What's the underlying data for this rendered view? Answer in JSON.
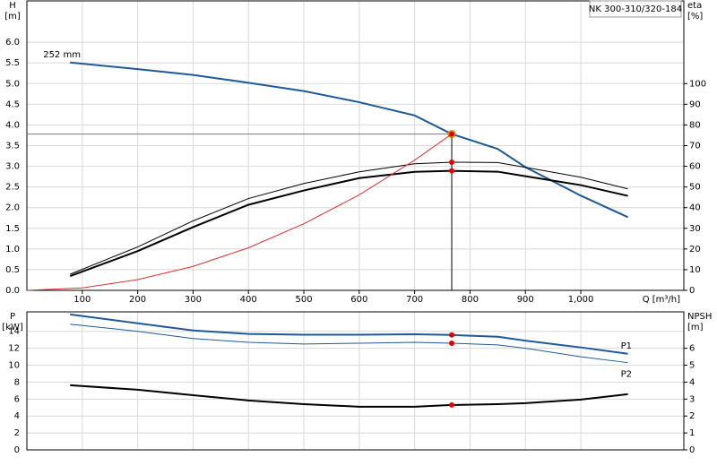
{
  "chart_data": [
    {
      "type": "line",
      "title": "NK 300-310/320-184",
      "xlabel": "Q [m³/h]",
      "ylabel": "H",
      "yunit": "[m]",
      "y2label": "eta",
      "y2unit": "[%]",
      "xlim": [
        0,
        1186
      ],
      "xticks": [
        100,
        200,
        300,
        400,
        500,
        600,
        700,
        800,
        900,
        {
          "value": 1000,
          "label": "1,000"
        }
      ],
      "ylim": [
        0,
        7
      ],
      "yticks": [
        {
          "value": 0,
          "label": "0.0"
        },
        {
          "value": 0.5,
          "label": "0.5"
        },
        {
          "value": 1,
          "label": "1.0"
        },
        {
          "value": 1.5,
          "label": "1.5"
        },
        {
          "value": 2,
          "label": "2.0"
        },
        {
          "value": 2.5,
          "label": "2.5"
        },
        {
          "value": 3,
          "label": "3.0"
        },
        {
          "value": 3.5,
          "label": "3.5"
        },
        {
          "value": 4,
          "label": "4.0"
        },
        {
          "value": 4.5,
          "label": "4.5"
        },
        {
          "value": 5,
          "label": "5.0"
        },
        {
          "value": 5.5,
          "label": "5.5"
        },
        {
          "value": 6,
          "label": "6.0"
        }
      ],
      "y2lim": [
        0,
        140
      ],
      "y2ticks": [
        0,
        10,
        20,
        30,
        40,
        50,
        60,
        70,
        80,
        90,
        100
      ],
      "grid": true,
      "x": [
        78,
        200,
        300,
        400,
        500,
        600,
        700,
        767,
        850,
        900,
        1000,
        1085
      ],
      "duty_point": {
        "x": 767,
        "y": 3.78
      },
      "series": [
        {
          "name": "252 mm",
          "color": "#1f5a96",
          "values": [
            5.51,
            5.35,
            5.21,
            5.02,
            4.82,
            4.55,
            4.23,
            3.78,
            3.42,
            2.98,
            2.29,
            1.77
          ]
        },
        {
          "color": "#000000",
          "axis": "y2",
          "values": [
            7.8,
            21,
            33.6,
            44.4,
            51.7,
            57.3,
            61.2,
            62,
            61.8,
            59.5,
            54.7,
            49.1
          ]
        },
        {
          "color": "#000000",
          "axis": "y2",
          "values": [
            6.9,
            19,
            30.6,
            41.4,
            48.3,
            54.3,
            57.3,
            57.8,
            57.4,
            55.2,
            50.9,
            45.7
          ]
        },
        {
          "color": "#e03030",
          "x": [
            0,
            100,
            200,
            300,
            400,
            500,
            600,
            700,
            767
          ],
          "values": [
            0,
            0.06,
            0.26,
            0.58,
            1.03,
            1.61,
            2.31,
            3.15,
            3.78
          ]
        }
      ]
    },
    {
      "type": "line",
      "ylabel": "P",
      "yunit": "[kW]",
      "y2label": "NPSH",
      "y2unit": "[m]",
      "xlim": [
        0,
        1186
      ],
      "ylim": [
        0,
        16.3
      ],
      "yticks": [
        0,
        2,
        4,
        6,
        8,
        10,
        12,
        14
      ],
      "y2lim": [
        0,
        8.15
      ],
      "y2ticks": [
        0,
        1,
        2,
        3,
        4,
        5,
        6
      ],
      "grid": true,
      "x": [
        78,
        200,
        300,
        400,
        500,
        600,
        700,
        767,
        850,
        900,
        1000,
        1085
      ],
      "duty_x": 767,
      "series": [
        {
          "name": "P1",
          "color": "#1f5a96",
          "values": [
            16.0,
            14.95,
            14.1,
            13.7,
            13.6,
            13.6,
            13.65,
            13.57,
            13.36,
            12.9,
            12.1,
            11.35
          ]
        },
        {
          "name": "P2",
          "color": "#1f5a96",
          "values": [
            14.85,
            14.0,
            13.15,
            12.7,
            12.5,
            12.6,
            12.7,
            12.6,
            12.4,
            12.0,
            11.0,
            10.3
          ]
        },
        {
          "color": "#000000",
          "axis": "y2",
          "values": [
            3.82,
            3.55,
            3.23,
            2.92,
            2.7,
            2.55,
            2.55,
            2.65,
            2.7,
            2.76,
            2.97,
            3.29
          ]
        }
      ]
    }
  ]
}
